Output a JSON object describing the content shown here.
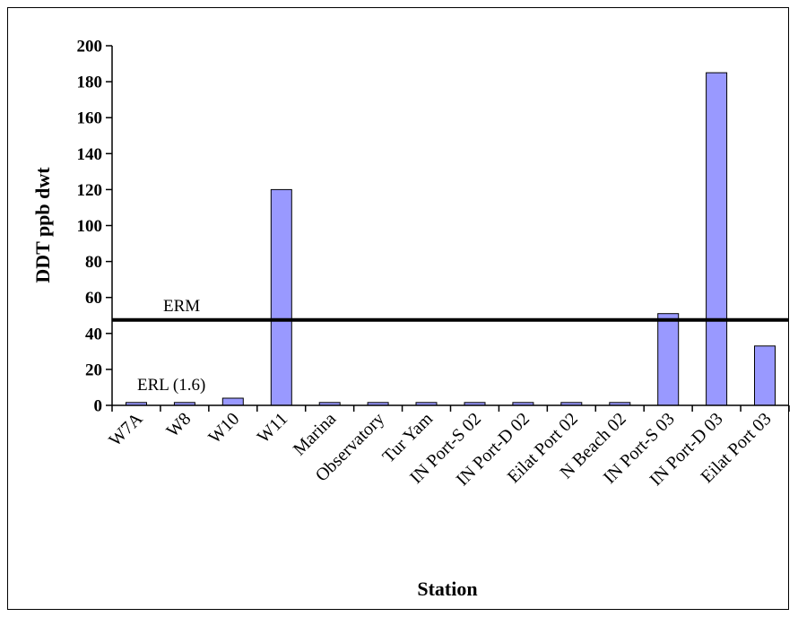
{
  "chart_data": {
    "type": "bar",
    "title": "",
    "xlabel": "Station",
    "ylabel": "DDT ppb dwt",
    "ylim": [
      0,
      200
    ],
    "yticks": [
      0,
      20,
      40,
      60,
      80,
      100,
      120,
      140,
      160,
      180,
      200
    ],
    "grid": false,
    "legend": "none",
    "categories": [
      "W7A",
      "W8",
      "W10",
      "W11",
      "Marina",
      "Observatory",
      "Tur Yam",
      "IN Port-S 02",
      "IN Port-D 02",
      "Eilat Port 02",
      "N Beach 02",
      "IN Port-S 03",
      "IN Port-D 03",
      "Eilat Port 03"
    ],
    "values": [
      1.6,
      1.6,
      4,
      120,
      1.6,
      1.6,
      1.6,
      1.6,
      1.6,
      1.6,
      1.6,
      51,
      185,
      33
    ],
    "bar_color": "#9999ff",
    "reference_lines": [
      {
        "label": "ERM",
        "value": 47.5,
        "color": "#000000"
      },
      {
        "label": "ERL (1.6)",
        "value": 1.6
      }
    ]
  }
}
